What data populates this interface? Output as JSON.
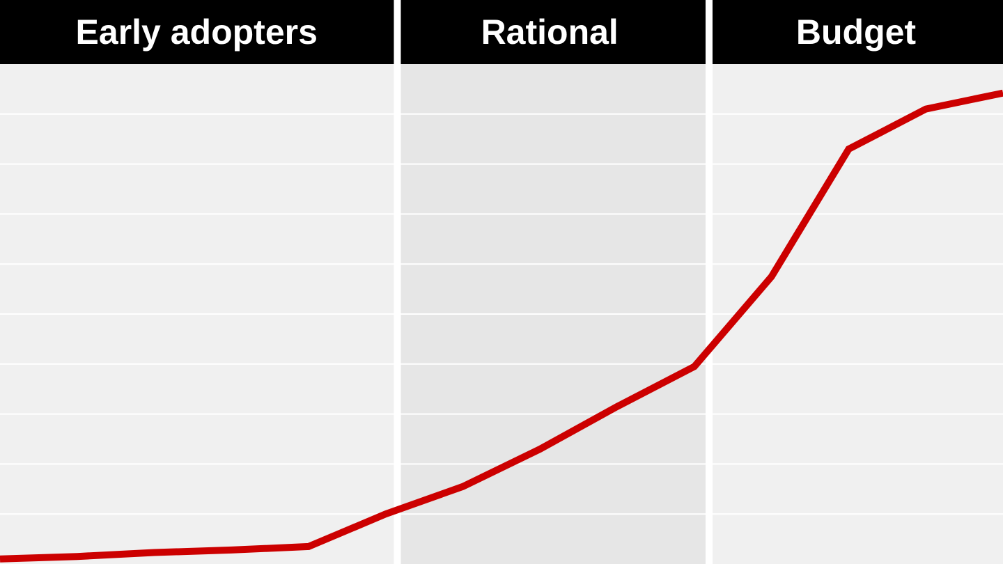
{
  "chart_data": {
    "type": "line",
    "title": "",
    "xlabel": "",
    "ylabel": "",
    "ylim": [
      0,
      100
    ],
    "xlim": [
      0,
      13
    ],
    "grid": true,
    "x": [
      0,
      1,
      2,
      3,
      4,
      5,
      6,
      7,
      8,
      9,
      10,
      11,
      12,
      13
    ],
    "series": [
      {
        "values": [
          1,
          1.5,
          2.3,
          2.8,
          3.5,
          10,
          15.5,
          23,
          31.5,
          39.5,
          57.5,
          83,
          91,
          94.2
        ]
      }
    ],
    "segments": [
      {
        "label": "Early adopters",
        "x_start": 0,
        "x_end": 5.15
      },
      {
        "label": "Rational",
        "x_start": 5.15,
        "x_end": 9.19
      },
      {
        "label": "Budget",
        "x_start": 9.19,
        "x_end": 13
      }
    ],
    "colors": {
      "line": "#cc0000",
      "header_background": "#000000",
      "header_text": "#ffffff",
      "panel_light": "#f0f0f0",
      "panel_dark": "#e6e6e6",
      "gridline": "#ffffff",
      "divider": "#ffffff"
    }
  }
}
